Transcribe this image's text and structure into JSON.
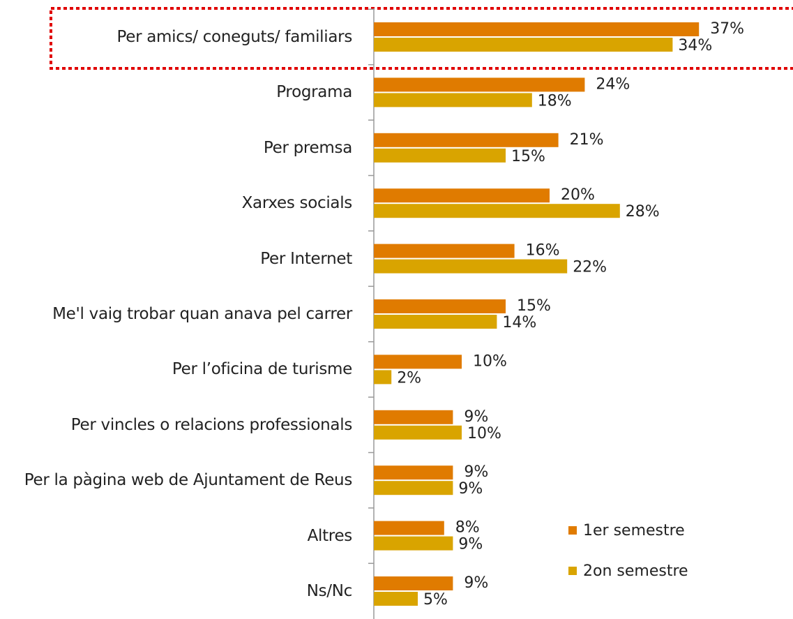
{
  "chart_data": {
    "type": "bar",
    "categories": [
      "Per amics/ coneguts/ familiars",
      "Programa",
      "Per premsa",
      "Xarxes socials",
      "Per Internet",
      "Me'l vaig trobar quan anava pel carrer",
      "Per l’oficina de turisme",
      "Per vincles o relacions professionals",
      "Per la pàgina web de Ajuntament de Reus",
      "Altres",
      "Ns/Nc"
    ],
    "series": [
      {
        "name": "1er semestre",
        "color": "#e07b00",
        "values": [
          37,
          24,
          21,
          20,
          16,
          15,
          10,
          9,
          9,
          8,
          9
        ],
        "value_labels": [
          "37%",
          "24%",
          "21%",
          "20%",
          "16%",
          "15%",
          "10%",
          "9%",
          "9%",
          "8%",
          "9%"
        ]
      },
      {
        "name": "2on semestre",
        "color": "#d9a400",
        "values": [
          34,
          18,
          15,
          28,
          22,
          14,
          2,
          10,
          9,
          9,
          5
        ],
        "value_labels": [
          "34%",
          "18%",
          "15%",
          "28%",
          "22%",
          "14%",
          "2%",
          "10%",
          "9%",
          "9%",
          "5%"
        ]
      }
    ]
  }
}
